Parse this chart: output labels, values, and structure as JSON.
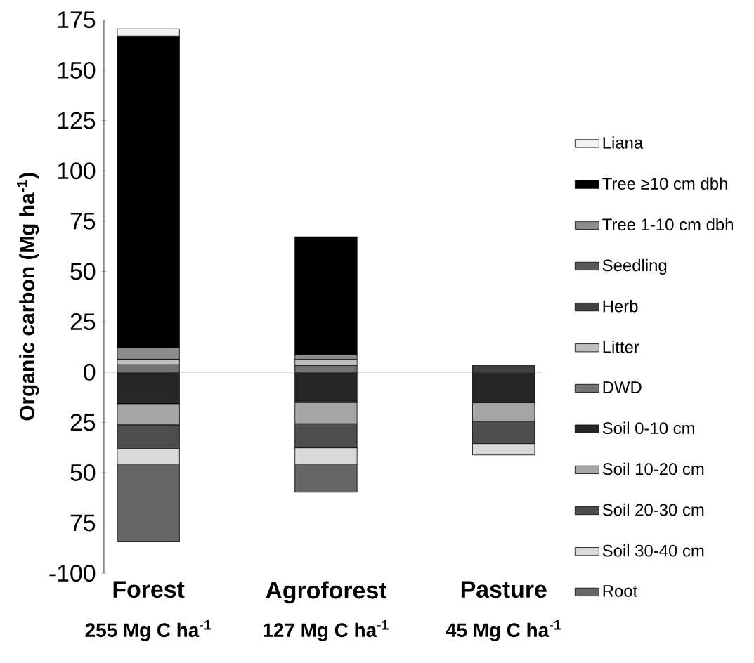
{
  "chart_data": {
    "type": "bar",
    "stacked": true,
    "ylabel": "Organic carbon (Mg ha$^{-1}$)",
    "categories": [
      "Forest",
      "Agroforest",
      "Pasture"
    ],
    "annotations": [
      "255 Mg C ha$^{-1}$",
      "127 Mg C ha$^{-1}$",
      "45 Mg C ha$^{-1}$"
    ],
    "series": [
      {
        "name": "DWD",
        "color": "#737373",
        "values": [
          3.7,
          3.3,
          null
        ]
      },
      {
        "name": "Litter",
        "color": "#bfbfbf",
        "values": [
          2.7,
          3,
          null
        ]
      },
      {
        "name": "Herb",
        "color": "#404040",
        "values": [
          null,
          null,
          3.3
        ]
      },
      {
        "name": "Seedling",
        "color": "#595959",
        "values": [
          null,
          null,
          null
        ]
      },
      {
        "name": "Tree 1-10 cm dbh",
        "color": "#8c8c8c",
        "values": [
          5.6,
          2.4,
          null
        ]
      },
      {
        "name": "Tree ≥10 cm dbh",
        "color": "#000000",
        "values": [
          155,
          58.5,
          null
        ]
      },
      {
        "name": "Liana",
        "color": "#f2f2f2",
        "values": [
          3.5,
          null,
          null
        ]
      },
      {
        "name": "Soil 0-10 cm",
        "color": "#262626",
        "values": [
          -15.8,
          -15.2,
          -15.3
        ]
      },
      {
        "name": "Soil 10-20 cm",
        "color": "#a6a6a6",
        "values": [
          -10.5,
          -10.5,
          -9.2
        ]
      },
      {
        "name": "Soil 20-30 cm",
        "color": "#4d4d4d",
        "values": [
          -11.8,
          -12,
          -11.1
        ]
      },
      {
        "name": "Soil 30-40 cm",
        "color": "#d9d9d9",
        "values": [
          -7.6,
          -8,
          -5.6
        ]
      },
      {
        "name": "Root",
        "color": "#666666",
        "values": [
          -38.7,
          -14,
          null
        ]
      }
    ],
    "ylim": [
      -100,
      175
    ],
    "yticks": [
      {
        "value": -100,
        "label": "-100"
      },
      {
        "value": -75,
        "label": "75"
      },
      {
        "value": -50,
        "label": "50"
      },
      {
        "value": -25,
        "label": "25"
      },
      0,
      25,
      50,
      75,
      100,
      125,
      150,
      175
    ],
    "ref_lines": [
      {
        "axis": "y",
        "value": 0,
        "color": "#808080"
      }
    ],
    "legend": "right"
  }
}
